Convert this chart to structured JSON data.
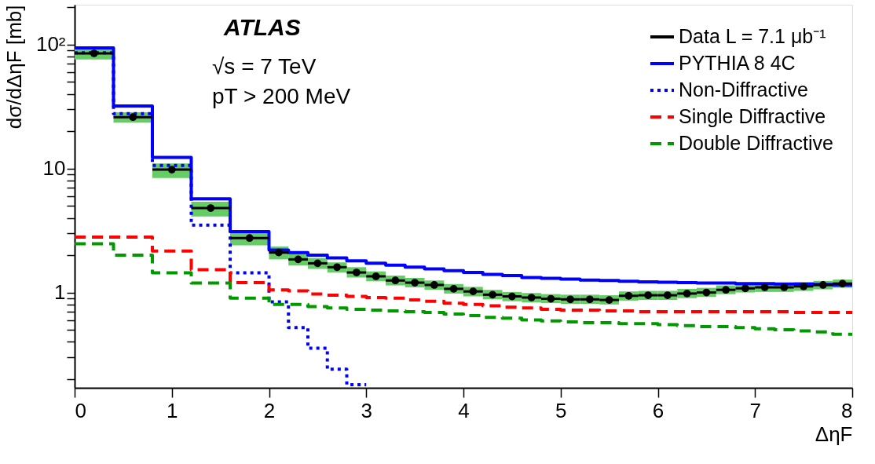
{
  "chart_data": {
    "type": "step",
    "xlabel": "ΔηF",
    "ylabel": "dσ/dΔηF [mb]",
    "xlim": [
      0,
      8
    ],
    "xticks": [
      0,
      1,
      2,
      3,
      4,
      5,
      6,
      7,
      8
    ],
    "ylim": [
      0.17,
      210
    ],
    "yticks": [
      {
        "value": 0.2,
        "label": null
      },
      {
        "value": 0.3,
        "label": null
      },
      {
        "value": 0.4,
        "label": null
      },
      {
        "value": 0.5,
        "label": null
      },
      {
        "value": 0.6,
        "label": null
      },
      {
        "value": 0.7,
        "label": null
      },
      {
        "value": 0.8,
        "label": null
      },
      {
        "value": 0.9,
        "label": null
      },
      1,
      {
        "value": 2,
        "label": null
      },
      {
        "value": 3,
        "label": null
      },
      {
        "value": 4,
        "label": null
      },
      {
        "value": 5,
        "label": null
      },
      {
        "value": 6,
        "label": null
      },
      {
        "value": 7,
        "label": null
      },
      {
        "value": 8,
        "label": null
      },
      {
        "value": 9,
        "label": null
      },
      10,
      {
        "value": 20,
        "label": null
      },
      {
        "value": 30,
        "label": null
      },
      {
        "value": 40,
        "label": null
      },
      {
        "value": 50,
        "label": null
      },
      {
        "value": 60,
        "label": null
      },
      {
        "value": 70,
        "label": null
      },
      {
        "value": 80,
        "label": null
      },
      {
        "value": 90,
        "label": null
      },
      {
        "value": 100,
        "label": "10²"
      },
      {
        "value": 200,
        "label": null
      }
    ],
    "log": "y",
    "grid": false,
    "legend": "top right",
    "annotations": [
      "ATLAS",
      "√s = 7 TeV",
      "pT > 200 MeV"
    ],
    "series": [
      {
        "name": "Data L = 7.1 μb⁻¹",
        "type": "scatter",
        "marker": "circle",
        "color": "#000000",
        "x": [
          0.2,
          0.6,
          1.0,
          1.4,
          1.8,
          2.1,
          2.3,
          2.5,
          2.7,
          2.9,
          3.1,
          3.3,
          3.5,
          3.7,
          3.9,
          4.1,
          4.3,
          4.5,
          4.7,
          4.9,
          5.1,
          5.3,
          5.5,
          5.7,
          5.9,
          6.1,
          6.3,
          6.5,
          6.7,
          6.9,
          7.1,
          7.3,
          7.5,
          7.7,
          7.9
        ],
        "values": [
          85,
          26,
          9.8,
          4.8,
          2.75,
          2.1,
          1.85,
          1.72,
          1.6,
          1.45,
          1.35,
          1.25,
          1.2,
          1.15,
          1.07,
          1.02,
          0.96,
          0.93,
          0.91,
          0.89,
          0.88,
          0.88,
          0.87,
          0.94,
          0.95,
          0.95,
          0.98,
          1.0,
          1.05,
          1.08,
          1.1,
          1.1,
          1.12,
          1.15,
          1.18
        ],
        "errors": [
          [
            76,
            94
          ],
          [
            23.5,
            28.5
          ],
          [
            8.4,
            11
          ],
          [
            4.1,
            5.4
          ],
          [
            2.4,
            3.1
          ],
          [
            1.85,
            2.35
          ],
          [
            1.65,
            2.05
          ],
          [
            1.55,
            1.9
          ],
          [
            1.45,
            1.75
          ],
          [
            1.32,
            1.6
          ],
          [
            1.23,
            1.48
          ],
          [
            1.14,
            1.37
          ],
          [
            1.1,
            1.31
          ],
          [
            1.05,
            1.25
          ],
          [
            0.98,
            1.17
          ],
          [
            0.93,
            1.11
          ],
          [
            0.88,
            1.05
          ],
          [
            0.85,
            1.01
          ],
          [
            0.83,
            0.99
          ],
          [
            0.82,
            0.97
          ],
          [
            0.81,
            0.96
          ],
          [
            0.81,
            0.96
          ],
          [
            0.8,
            0.95
          ],
          [
            0.86,
            1.02
          ],
          [
            0.87,
            1.03
          ],
          [
            0.87,
            1.03
          ],
          [
            0.9,
            1.07
          ],
          [
            0.92,
            1.09
          ],
          [
            0.97,
            1.14
          ],
          [
            1.0,
            1.17
          ],
          [
            1.01,
            1.19
          ],
          [
            1.01,
            1.19
          ],
          [
            1.03,
            1.21
          ],
          [
            1.06,
            1.24
          ],
          [
            1.09,
            1.27
          ]
        ],
        "xerrors": [
          0.2,
          0.2,
          0.2,
          0.2,
          0.2,
          0.1,
          0.1,
          0.1,
          0.1,
          0.1,
          0.1,
          0.1,
          0.1,
          0.1,
          0.1,
          0.1,
          0.1,
          0.1,
          0.1,
          0.1,
          0.1,
          0.1,
          0.1,
          0.1,
          0.1,
          0.1,
          0.1,
          0.1,
          0.1,
          0.1,
          0.1,
          0.1,
          0.1,
          0.1,
          0.1
        ]
      },
      {
        "name": "PYTHIA 8 4C",
        "color": "#0000ff",
        "line_style": "solid",
        "x": [
          0,
          0.4,
          0.8,
          1.2,
          1.6,
          2.0,
          2.2,
          2.4,
          2.6,
          2.8,
          3.0,
          3.2,
          3.4,
          3.6,
          3.8,
          4.0,
          4.2,
          4.4,
          4.6,
          4.8,
          5.0,
          5.2,
          5.4,
          5.6,
          5.8,
          6.0,
          6.2,
          6.4,
          6.6,
          6.8,
          7.0,
          7.2,
          7.4,
          7.6,
          7.8,
          8.0
        ],
        "values": [
          94,
          32,
          12.3,
          5.7,
          3.1,
          2.2,
          2.1,
          2.0,
          1.9,
          1.8,
          1.72,
          1.66,
          1.6,
          1.55,
          1.5,
          1.45,
          1.4,
          1.37,
          1.32,
          1.3,
          1.28,
          1.26,
          1.25,
          1.23,
          1.22,
          1.21,
          1.2,
          1.19,
          1.19,
          1.18,
          1.18,
          1.17,
          1.17,
          1.16,
          1.15,
          1.15
        ]
      },
      {
        "name": "Non-Diffractive",
        "color": "#0000ff",
        "line_style": "dotted",
        "x": [
          0,
          0.4,
          0.8,
          1.2,
          1.6,
          2.0,
          2.2,
          2.4,
          2.6,
          2.8,
          3.0
        ],
        "values": [
          86,
          27.7,
          10.6,
          3.5,
          1.44,
          0.84,
          0.52,
          0.355,
          0.24,
          0.18,
          0.18
        ]
      },
      {
        "name": "Single Diffractive",
        "color": "#ff0000",
        "line_style": "dashed",
        "x": [
          0,
          0.4,
          0.8,
          1.2,
          1.6,
          2.0,
          2.2,
          2.4,
          2.6,
          2.8,
          3.0,
          3.2,
          3.4,
          3.6,
          3.8,
          4.0,
          4.2,
          4.4,
          4.6,
          4.8,
          5.0,
          5.2,
          5.4,
          5.6,
          5.8,
          6.0,
          6.2,
          6.4,
          6.6,
          6.8,
          7.0,
          7.2,
          7.4,
          7.6,
          7.8,
          8.0
        ],
        "values": [
          2.8,
          2.8,
          2.16,
          1.53,
          1.2,
          1.05,
          1.03,
          0.97,
          0.95,
          0.93,
          0.91,
          0.9,
          0.87,
          0.85,
          0.82,
          0.8,
          0.78,
          0.76,
          0.75,
          0.73,
          0.72,
          0.72,
          0.71,
          0.71,
          0.7,
          0.7,
          0.7,
          0.7,
          0.7,
          0.7,
          0.7,
          0.7,
          0.69,
          0.69,
          0.69,
          0.69
        ]
      },
      {
        "name": "Double Diffractive",
        "color": "#009900",
        "line_style": "dashed",
        "x": [
          0,
          0.4,
          0.8,
          1.2,
          1.6,
          2.0,
          2.2,
          2.4,
          2.6,
          2.8,
          3.0,
          3.2,
          3.4,
          3.6,
          3.8,
          4.0,
          4.2,
          4.4,
          4.6,
          4.8,
          5.0,
          5.2,
          5.4,
          5.6,
          5.8,
          6.0,
          6.2,
          6.4,
          6.6,
          6.8,
          7.0,
          7.2,
          7.4,
          7.6,
          7.8,
          8.0
        ],
        "values": [
          2.47,
          2.0,
          1.44,
          1.19,
          0.9,
          0.8,
          0.8,
          0.77,
          0.75,
          0.73,
          0.72,
          0.71,
          0.7,
          0.69,
          0.67,
          0.65,
          0.63,
          0.62,
          0.6,
          0.59,
          0.58,
          0.57,
          0.57,
          0.56,
          0.56,
          0.55,
          0.54,
          0.53,
          0.53,
          0.52,
          0.51,
          0.5,
          0.49,
          0.48,
          0.46,
          0.46
        ]
      }
    ]
  }
}
